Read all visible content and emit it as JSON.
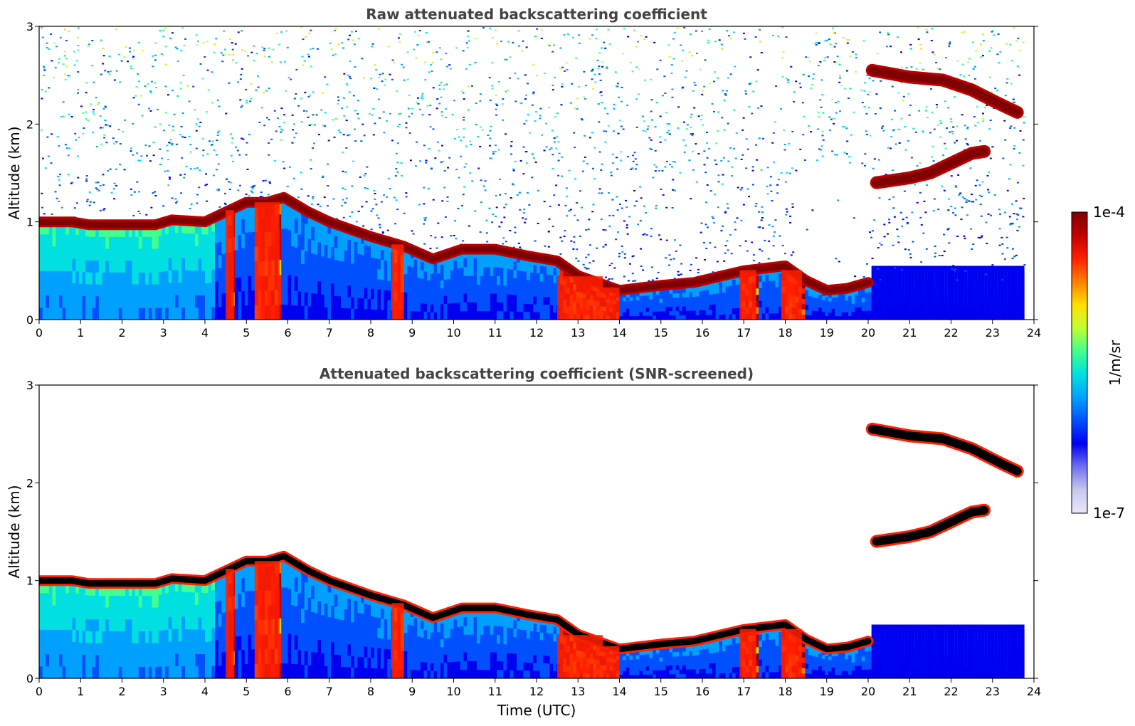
{
  "chart_data": [
    {
      "type": "heatmap",
      "title": "Raw attenuated backscattering coefficient",
      "xlabel": "",
      "ylabel": "Altitude (km)",
      "xlim": [
        0,
        24
      ],
      "ylim": [
        0,
        3
      ],
      "xticks": [
        "0",
        "1",
        "2",
        "3",
        "4",
        "5",
        "6",
        "7",
        "8",
        "9",
        "10",
        "11",
        "12",
        "13",
        "14",
        "15",
        "16",
        "17",
        "18",
        "19",
        "20",
        "21",
        "22",
        "23",
        "24"
      ],
      "yticks": [
        "0",
        "1",
        "2",
        "3"
      ],
      "screened": false,
      "noise_above_cloud": true,
      "features": {
        "boundary_layer_top_km": [
          [
            0,
            1.0
          ],
          [
            0.8,
            1.0
          ],
          [
            1.2,
            0.97
          ],
          [
            2.8,
            0.97
          ],
          [
            3.2,
            1.02
          ],
          [
            4,
            1.0
          ],
          [
            4.5,
            1.1
          ],
          [
            5,
            1.2
          ],
          [
            5.5,
            1.2
          ],
          [
            5.9,
            1.25
          ],
          [
            6.5,
            1.1
          ],
          [
            7,
            1.0
          ],
          [
            8,
            0.85
          ],
          [
            8.8,
            0.75
          ],
          [
            9.5,
            0.62
          ],
          [
            10.2,
            0.72
          ],
          [
            11,
            0.72
          ],
          [
            11.8,
            0.65
          ],
          [
            12.5,
            0.6
          ],
          [
            13,
            0.45
          ],
          [
            14,
            0.3
          ],
          [
            15,
            0.35
          ],
          [
            15.8,
            0.38
          ],
          [
            16.5,
            0.45
          ],
          [
            17,
            0.5
          ],
          [
            18,
            0.55
          ],
          [
            18.5,
            0.4
          ],
          [
            19,
            0.3
          ],
          [
            19.5,
            0.32
          ],
          [
            20,
            0.38
          ]
        ],
        "upper_cloud_layer_1_km": [
          [
            20.2,
            1.4
          ],
          [
            21,
            1.45
          ],
          [
            21.5,
            1.5
          ],
          [
            22,
            1.6
          ],
          [
            22.5,
            1.7
          ],
          [
            22.8,
            1.72
          ]
        ],
        "upper_cloud_layer_2_km": [
          [
            20.1,
            2.55
          ],
          [
            21,
            2.48
          ],
          [
            21.8,
            2.45
          ],
          [
            22.5,
            2.35
          ],
          [
            23.2,
            2.2
          ],
          [
            23.6,
            2.12
          ]
        ],
        "precipitation_columns_utc": [
          [
            4.5,
            4.7
          ],
          [
            5.2,
            5.8
          ],
          [
            8.5,
            8.8
          ],
          [
            12.5,
            13.6
          ],
          [
            13.6,
            14.0
          ],
          [
            16.9,
            17.3
          ],
          [
            17.9,
            18.4
          ]
        ]
      }
    },
    {
      "type": "heatmap",
      "title": "Attenuated backscattering coefficient (SNR-screened)",
      "xlabel": "Time (UTC)",
      "ylabel": "Altitude (km)",
      "xlim": [
        0,
        24
      ],
      "ylim": [
        0,
        3
      ],
      "xticks": [
        "0",
        "1",
        "2",
        "3",
        "4",
        "5",
        "6",
        "7",
        "8",
        "9",
        "10",
        "11",
        "12",
        "13",
        "14",
        "15",
        "16",
        "17",
        "18",
        "19",
        "20",
        "21",
        "22",
        "23",
        "24"
      ],
      "yticks": [
        "0",
        "1",
        "2",
        "3"
      ],
      "screened": true,
      "noise_above_cloud": false
    }
  ],
  "colorbar": {
    "label": "1/m/sr",
    "max_label": "1e-4",
    "min_label": "1e-7",
    "scale": "log",
    "range": [
      1e-07,
      0.0001
    ],
    "colormap": [
      "#e8e8f8",
      "#c8c8f0",
      "#7070f0",
      "#0000f0",
      "#0050ff",
      "#00a0ff",
      "#00e0e0",
      "#40ff90",
      "#c0ff30",
      "#ffe000",
      "#ff8000",
      "#ff2000",
      "#c00000",
      "#800000"
    ]
  }
}
